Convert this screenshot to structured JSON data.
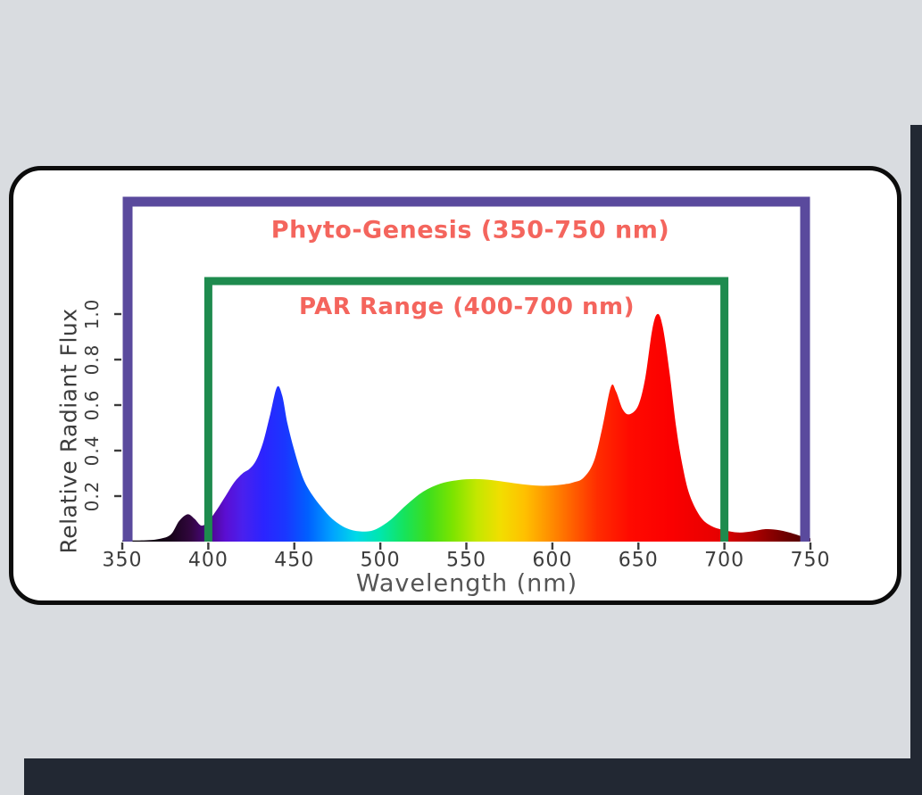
{
  "page": {
    "background_color": "#d9dce0",
    "edge_band_color": "#222833",
    "card": {
      "background": "#ffffff",
      "border_color": "#0c0c0c"
    }
  },
  "chart_data": {
    "type": "area",
    "title": "",
    "xlabel": "Wavelength (nm)",
    "ylabel": "Relative Radiant Flux",
    "xlim": [
      350,
      750
    ],
    "ylim": [
      0,
      1.5
    ],
    "x_ticks": [
      350,
      400,
      450,
      500,
      550,
      600,
      650,
      700,
      750
    ],
    "y_ticks": [
      0.2,
      0.4,
      0.6,
      0.8,
      1.0
    ],
    "grid": false,
    "legend": "none",
    "series": [
      {
        "name": "led-spectrum-relative-radiant-flux",
        "x": [
          350,
          360,
          370,
          378,
          383,
          388,
          392,
          396,
          400,
          405,
          410,
          415,
          420,
          424,
          428,
          432,
          436,
          440,
          443,
          446,
          450,
          455,
          460,
          466,
          472,
          480,
          488,
          496,
          505,
          515,
          525,
          535,
          545,
          555,
          565,
          575,
          585,
          595,
          605,
          612,
          618,
          624,
          629,
          634,
          637,
          641,
          645,
          650,
          654,
          658,
          661,
          664,
          668,
          672,
          676,
          680,
          686,
          692,
          700,
          708,
          716,
          724,
          732,
          740,
          746,
          750
        ],
        "y": [
          0.005,
          0.005,
          0.01,
          0.03,
          0.09,
          0.12,
          0.1,
          0.07,
          0.09,
          0.14,
          0.2,
          0.26,
          0.3,
          0.32,
          0.36,
          0.44,
          0.56,
          0.68,
          0.64,
          0.52,
          0.4,
          0.28,
          0.21,
          0.15,
          0.1,
          0.06,
          0.045,
          0.05,
          0.09,
          0.16,
          0.22,
          0.255,
          0.27,
          0.275,
          0.27,
          0.26,
          0.25,
          0.245,
          0.25,
          0.26,
          0.28,
          0.35,
          0.5,
          0.68,
          0.66,
          0.58,
          0.56,
          0.6,
          0.72,
          0.93,
          1.0,
          0.95,
          0.75,
          0.5,
          0.32,
          0.2,
          0.11,
          0.07,
          0.05,
          0.04,
          0.045,
          0.055,
          0.05,
          0.035,
          0.02,
          0.015
        ]
      }
    ],
    "annotations": [
      {
        "id": "phyto",
        "label": "Phyto-Genesis (350-750 nm)",
        "range_nm": [
          350,
          750
        ],
        "bracket_color": "#5a4a9d"
      },
      {
        "id": "par",
        "label": "PAR Range (400-700 nm)",
        "range_nm": [
          400,
          700
        ],
        "bracket_color": "#1e8b4e"
      }
    ],
    "annotation_label_color": "#f4655d",
    "axis_text_color": "#3c3c3c",
    "axis_label_color": "#555555",
    "spectrum_gradient": [
      [
        350,
        "#000000"
      ],
      [
        378,
        "#170419"
      ],
      [
        390,
        "#320640"
      ],
      [
        400,
        "#4b0787"
      ],
      [
        410,
        "#5b0ed2"
      ],
      [
        420,
        "#4a20ee"
      ],
      [
        432,
        "#2b24ff"
      ],
      [
        445,
        "#1a37ff"
      ],
      [
        458,
        "#0060ff"
      ],
      [
        472,
        "#00a2ff"
      ],
      [
        486,
        "#00d9e8"
      ],
      [
        500,
        "#00e7ac"
      ],
      [
        514,
        "#16e35b"
      ],
      [
        528,
        "#3ede1c"
      ],
      [
        542,
        "#7ce400"
      ],
      [
        556,
        "#c3e700"
      ],
      [
        570,
        "#f2de00"
      ],
      [
        584,
        "#ffc000"
      ],
      [
        598,
        "#ff9100"
      ],
      [
        612,
        "#ff5f00"
      ],
      [
        626,
        "#ff2d00"
      ],
      [
        645,
        "#ff0a00"
      ],
      [
        668,
        "#fb0000"
      ],
      [
        695,
        "#e80000"
      ],
      [
        715,
        "#b30000"
      ],
      [
        735,
        "#700000"
      ],
      [
        750,
        "#480000"
      ]
    ]
  }
}
